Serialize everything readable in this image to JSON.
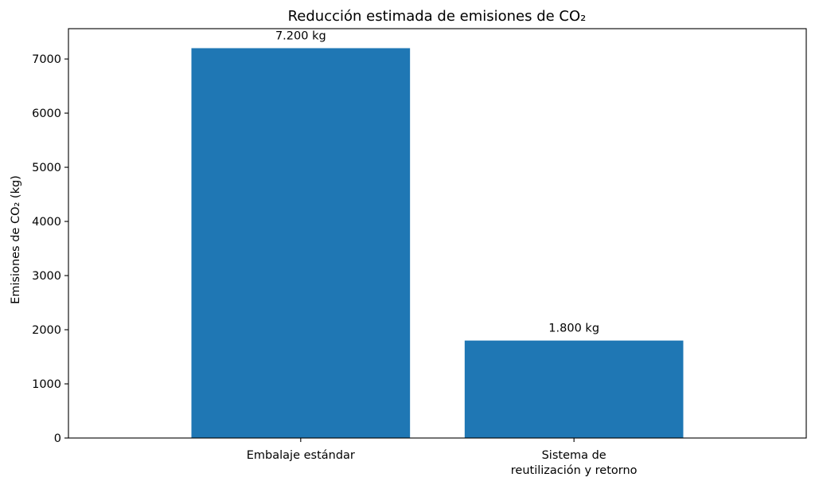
{
  "chart_data": {
    "type": "bar",
    "title": "Reducción estimada de emisiones de CO₂",
    "xlabel": "",
    "ylabel": "Emisiones de CO₂ (kg)",
    "categories": [
      [
        "Embalaje estándar"
      ],
      [
        "Sistema de",
        "reutilización y retorno"
      ]
    ],
    "values": [
      7200,
      1800
    ],
    "data_labels": [
      "7.200 kg",
      "1.800 kg"
    ],
    "ylim": [
      0,
      7560
    ],
    "yticks": [
      0,
      1000,
      2000,
      3000,
      4000,
      5000,
      6000,
      7000
    ],
    "grid": false,
    "legend": "none",
    "colors": {
      "bar": "#1f77b4",
      "axis": "#000000",
      "background": "#ffffff"
    }
  }
}
